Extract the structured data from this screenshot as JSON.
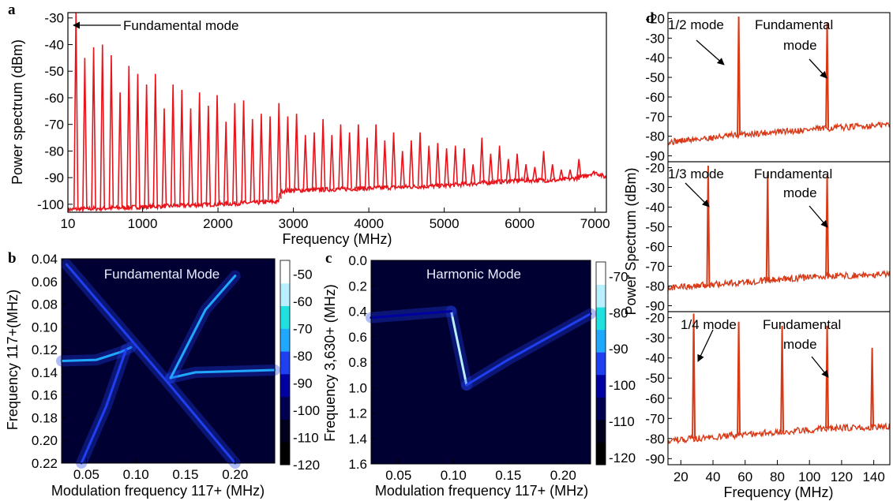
{
  "chart_data": [
    {
      "panel": "a",
      "type": "line",
      "xlabel": "Frequency (MHz)",
      "ylabel": "Power spectrum (dBm)",
      "xlim": [
        10,
        7150
      ],
      "ylim": [
        -103,
        -28
      ],
      "x_ticks": [
        10,
        1000,
        2000,
        3000,
        4000,
        5000,
        6000,
        7000
      ],
      "x_tick_labels": [
        "10",
        "1000",
        "2000",
        "3000",
        "4000",
        "5000",
        "6000",
        "7000"
      ],
      "y_ticks": [
        -30,
        -40,
        -50,
        -60,
        -70,
        -80,
        -90,
        -100
      ],
      "y_tick_labels": [
        "-30",
        "-40",
        "-50",
        "-60",
        "-70",
        "-80",
        "-90",
        "-100"
      ],
      "color": "#e8141c",
      "annotations": [
        {
          "text": "Fundamental mode",
          "x": 117,
          "y": -30
        }
      ],
      "series": [
        {
          "peak_freq_mhz": [
            117,
            234,
            351,
            468,
            585,
            702,
            819,
            936,
            1053,
            1170,
            1287,
            1404,
            1521,
            1638,
            1755,
            1872,
            1989,
            2106,
            2223,
            2340,
            2457,
            2574,
            2691,
            2808,
            2925,
            3042,
            3159,
            3276,
            3393,
            3510,
            3627,
            3744,
            3861,
            3978,
            4095,
            4212,
            4329,
            4446,
            4563,
            4680,
            4797,
            4914,
            5031,
            5148,
            5265,
            5382,
            5499,
            5616,
            5733,
            5850,
            5967,
            6084,
            6201,
            6318,
            6435,
            6552,
            6669,
            6786,
            6903
          ],
          "peak_level_dbm": [
            -28,
            -45,
            -41,
            -40,
            -44,
            -58,
            -48,
            -51,
            -55,
            -51,
            -64,
            -55,
            -57,
            -64,
            -58,
            -63,
            -59,
            -69,
            -62,
            -61,
            -68,
            -66,
            -67,
            -62,
            -67,
            -66,
            -74,
            -73,
            -68,
            -74,
            -70,
            -73,
            -70,
            -75,
            -70,
            -76,
            -73,
            -80,
            -76,
            -73,
            -78,
            -77,
            -79,
            -78,
            -79,
            -85,
            -75,
            -81,
            -78,
            -83,
            -81,
            -85,
            -86,
            -80,
            -85,
            -87,
            -87,
            -83,
            -89
          ],
          "noise_floor_dbm": {
            "x": [
              10,
              1000,
              2000,
              2800,
              2830,
              4000,
              5000,
              6000,
              6500,
              6800,
              7000,
              7150
            ],
            "y": [
              -102,
              -101,
              -100,
              -99,
              -95,
              -94,
              -93,
              -91,
              -91,
              -90,
              -88,
              -90
            ]
          }
        }
      ]
    },
    {
      "panel": "b",
      "type": "heatmap",
      "title": "Fundamental Mode",
      "xlabel": "Modulation frequency 117+ (MHz)",
      "ylabel": "Frequency 117+(MHz)",
      "xlim": [
        0.025,
        0.24
      ],
      "ylim": [
        0.04,
        0.22
      ],
      "x_ticks": [
        0.05,
        0.1,
        0.15,
        0.2
      ],
      "x_tick_labels": [
        "0.05",
        "0.10",
        "0.15",
        "0.20"
      ],
      "y_ticks": [
        0.04,
        0.06,
        0.08,
        0.1,
        0.12,
        0.14,
        0.16,
        0.18,
        0.2,
        0.22
      ],
      "y_tick_labels": [
        "0.04",
        "0.06",
        "0.08",
        "0.10",
        "0.12",
        "0.14",
        "0.16",
        "0.18",
        "0.20",
        "0.22"
      ],
      "colorbar_ticks": [
        -50,
        -60,
        -70,
        -80,
        -90,
        -100,
        -110,
        -120
      ],
      "colorbar_labels": [
        "-50",
        "-60",
        "-70",
        "-80",
        "-90",
        "-100",
        "-110",
        "-120"
      ],
      "colorbar_range": [
        -120,
        -45
      ],
      "colorscale": [
        "#000000",
        "#00001e",
        "#000050",
        "#0000a0",
        "#1f3ff0",
        "#20a8ff",
        "#20e0e0",
        "#b8f0ff",
        "#ffffff"
      ],
      "traces": [
        {
          "name": "",
          "points": [
            [
              0.025,
              0.13
            ],
            [
              0.06,
              0.129
            ],
            [
              0.085,
              0.122
            ],
            [
              0.095,
              0.118
            ]
          ],
          "level": -72
        },
        {
          "name": "",
          "points": [
            [
              0.135,
              0.145
            ],
            [
              0.16,
              0.14
            ],
            [
              0.2,
              0.139
            ],
            [
              0.24,
              0.138
            ]
          ],
          "level": -72
        },
        {
          "name": "",
          "points": [
            [
              0.03,
              0.045
            ],
            [
              0.135,
              0.152
            ],
            [
              0.2,
              0.22
            ]
          ],
          "level": -80
        },
        {
          "name": "",
          "points": [
            [
              0.135,
              0.145
            ],
            [
              0.17,
              0.085
            ],
            [
              0.2,
              0.055
            ]
          ],
          "level": -75
        },
        {
          "name": "",
          "points": [
            [
              0.09,
              0.12
            ],
            [
              0.07,
              0.17
            ],
            [
              0.045,
              0.22
            ]
          ],
          "level": -78
        }
      ]
    },
    {
      "panel": "c",
      "type": "heatmap",
      "title": "Harmonic Mode",
      "xlabel": "Modulation frequency 117+ (MHz)",
      "ylabel": "Frequency 3,630+ (MHz)",
      "xlim": [
        0.025,
        0.225
      ],
      "ylim": [
        0.0,
        1.6
      ],
      "x_ticks": [
        0.05,
        0.1,
        0.15,
        0.2
      ],
      "x_tick_labels": [
        "0.05",
        "0.10",
        "0.15",
        "0.20"
      ],
      "y_ticks": [
        0.0,
        0.2,
        0.4,
        0.6,
        0.8,
        1.0,
        1.2,
        1.4,
        1.6
      ],
      "y_tick_labels": [
        "0.0",
        "0.2",
        "0.4",
        "0.6",
        "0.8",
        "1.0",
        "1.2",
        "1.4",
        "1.6"
      ],
      "colorbar_ticks": [
        -70,
        -80,
        -90,
        -100,
        -110,
        -120
      ],
      "colorbar_labels": [
        "-70",
        "-80",
        "-90",
        "-100",
        "-110",
        "-120"
      ],
      "colorbar_range": [
        -122,
        -66
      ],
      "colorscale": [
        "#000000",
        "#00001e",
        "#000050",
        "#0000a0",
        "#1f3ff0",
        "#20a8ff",
        "#20e0e0",
        "#b8f0ff",
        "#ffffff"
      ],
      "traces": [
        {
          "name": "",
          "points": [
            [
              0.098,
              0.4
            ],
            [
              0.112,
              0.98
            ]
          ],
          "level": -76
        },
        {
          "name": "",
          "points": [
            [
              0.112,
              0.98
            ],
            [
              0.15,
              0.78
            ],
            [
              0.225,
              0.42
            ]
          ],
          "level": -96
        },
        {
          "name": "",
          "points": [
            [
              0.025,
              0.45
            ],
            [
              0.098,
              0.4
            ]
          ],
          "level": -98
        }
      ]
    },
    {
      "panel": "d",
      "type": "line",
      "xlabel": "Frequency (MHz)",
      "ylabel": "Power Spectrum (dBm)",
      "xlim": [
        12,
        150
      ],
      "x_ticks": [
        20,
        40,
        60,
        80,
        100,
        120,
        140
      ],
      "x_tick_labels": [
        "20",
        "40",
        "60",
        "80",
        "100",
        "120",
        "140"
      ],
      "y_ticks": [
        -20,
        -30,
        -40,
        -50,
        -60,
        -70,
        -80,
        -90
      ],
      "y_tick_labels": [
        "-20",
        "-30",
        "-40",
        "-50",
        "-60",
        "-70",
        "-80",
        "-90"
      ],
      "color": "#d83a18",
      "subplots": [
        {
          "ylim": [
            -93,
            -17
          ],
          "peaks": [
            {
              "x": 56,
              "y": -19
            },
            {
              "x": 111,
              "y": -22
            }
          ],
          "baseline": {
            "x": [
              12,
              60,
              110,
              150
            ],
            "y": [
              -83,
              -79,
              -76,
              -74
            ]
          },
          "annotations": [
            {
              "text": "1/2 mode"
            },
            {
              "text": "Fundamental"
            },
            {
              "text": "mode"
            }
          ]
        },
        {
          "ylim": [
            -93,
            -17
          ],
          "peaks": [
            {
              "x": 37,
              "y": -19
            },
            {
              "x": 74,
              "y": -22
            },
            {
              "x": 111,
              "y": -24
            }
          ],
          "baseline": {
            "x": [
              12,
              60,
              110,
              150
            ],
            "y": [
              -81,
              -78,
              -75,
              -74
            ]
          },
          "annotations": [
            {
              "text": "1/3 mode"
            },
            {
              "text": "Fundamental"
            },
            {
              "text": "mode"
            }
          ]
        },
        {
          "ylim": [
            -93,
            -17
          ],
          "peaks": [
            {
              "x": 28,
              "y": -18
            },
            {
              "x": 56,
              "y": -22
            },
            {
              "x": 83,
              "y": -24
            },
            {
              "x": 111,
              "y": -24
            },
            {
              "x": 139,
              "y": -35
            }
          ],
          "baseline": {
            "x": [
              12,
              60,
              110,
              150
            ],
            "y": [
              -81,
              -78,
              -75,
              -74
            ]
          },
          "annotations": [
            {
              "text": "1/4 mode"
            },
            {
              "text": "Fundamental"
            },
            {
              "text": "mode"
            }
          ]
        }
      ]
    }
  ],
  "panel_letters": {
    "a": "a",
    "b": "b",
    "c": "c",
    "d": "d"
  }
}
